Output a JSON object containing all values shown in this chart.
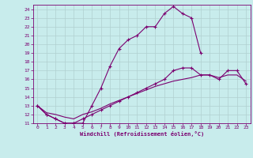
{
  "xlabel": "Windchill (Refroidissement éolien,°C)",
  "bg_color": "#c8ecec",
  "line_color": "#7b0070",
  "grid_color": "#b0d0d0",
  "xlim": [
    -0.5,
    23.5
  ],
  "ylim": [
    11,
    24.5
  ],
  "xticks": [
    0,
    1,
    2,
    3,
    4,
    5,
    6,
    7,
    8,
    9,
    10,
    11,
    12,
    13,
    14,
    15,
    16,
    17,
    18,
    19,
    20,
    21,
    22,
    23
  ],
  "yticks": [
    11,
    12,
    13,
    14,
    15,
    16,
    17,
    18,
    19,
    20,
    21,
    22,
    23,
    24
  ],
  "line1_x": [
    0,
    1,
    2,
    3,
    4,
    5,
    6,
    7,
    8,
    9,
    10,
    11,
    12,
    13,
    14,
    15,
    16,
    17,
    18
  ],
  "line1_y": [
    13,
    12,
    11.5,
    11,
    11,
    11,
    13,
    15,
    17.5,
    19.5,
    20.5,
    21,
    22,
    22,
    23.5,
    24.3,
    23.5,
    23,
    19
  ],
  "line2_x": [
    0,
    1,
    2,
    3,
    4,
    5,
    6,
    7,
    8,
    9,
    10,
    11,
    12,
    13,
    14,
    15,
    16,
    17,
    18,
    19,
    20,
    21,
    22,
    23
  ],
  "line2_y": [
    13,
    12,
    11.5,
    11,
    11,
    11.5,
    12,
    12.5,
    13,
    13.5,
    14,
    14.5,
    15,
    15.5,
    16,
    17,
    17.3,
    17.3,
    16.5,
    16.5,
    16,
    17,
    17,
    15.5
  ],
  "line3_x": [
    0,
    1,
    2,
    3,
    4,
    5,
    6,
    7,
    8,
    9,
    10,
    11,
    12,
    13,
    14,
    15,
    16,
    17,
    18,
    19,
    20,
    21,
    22,
    23
  ],
  "line3_y": [
    13,
    12.2,
    12,
    11.7,
    11.5,
    12,
    12.3,
    12.7,
    13.2,
    13.6,
    14,
    14.4,
    14.8,
    15.2,
    15.5,
    15.8,
    16,
    16.2,
    16.5,
    16.5,
    16.2,
    16.5,
    16.5,
    15.8
  ]
}
